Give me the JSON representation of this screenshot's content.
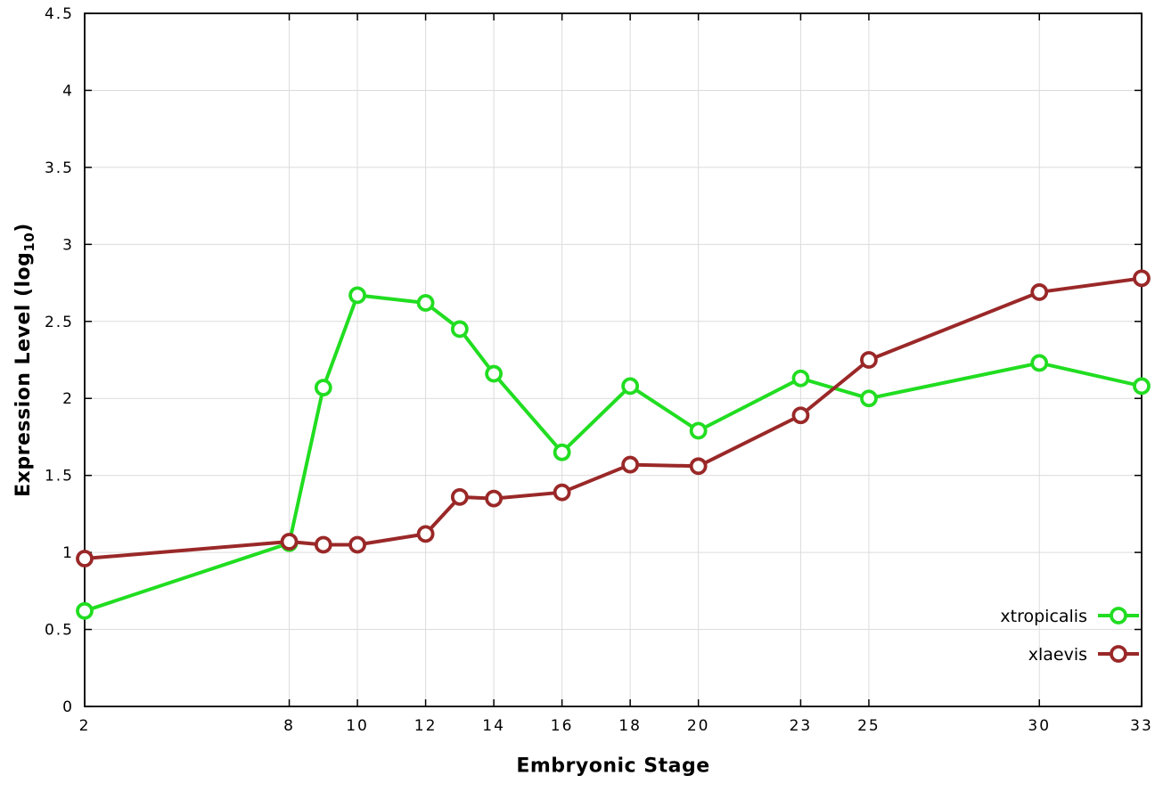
{
  "chart_data": {
    "type": "line",
    "title": "",
    "xlabel": "Embryonic Stage",
    "ylabel": {
      "prefix": "Expression Level (log",
      "sub": "10",
      "suffix": ")"
    },
    "x": [
      2,
      8,
      9,
      10,
      12,
      13,
      14,
      16,
      18,
      20,
      23,
      25,
      30,
      33
    ],
    "xlim": [
      2,
      33
    ],
    "ylim": [
      0,
      4.5
    ],
    "xticks": [
      2,
      8,
      10,
      12,
      14,
      16,
      18,
      20,
      23,
      25,
      30,
      33
    ],
    "yticks": [
      0,
      0.5,
      1,
      1.5,
      2,
      2.5,
      3,
      3.5,
      4,
      4.5
    ],
    "grid": true,
    "legend_position": "bottom-right",
    "series": [
      {
        "name": "xtropicalis",
        "color": "#21dd21",
        "values": [
          0.62,
          1.06,
          2.07,
          2.67,
          2.62,
          2.45,
          2.16,
          1.65,
          2.08,
          1.79,
          2.13,
          2.0,
          2.23,
          2.08
        ]
      },
      {
        "name": "xlaevis",
        "color": "#9a2828",
        "values": [
          0.96,
          1.07,
          1.05,
          1.05,
          1.12,
          1.36,
          1.35,
          1.39,
          1.57,
          1.56,
          1.89,
          2.25,
          2.69,
          2.78
        ]
      }
    ],
    "style": {
      "grid_color": "#dcdcdc",
      "frame_color": "#000000",
      "marker_fill": "#ffffff"
    }
  }
}
